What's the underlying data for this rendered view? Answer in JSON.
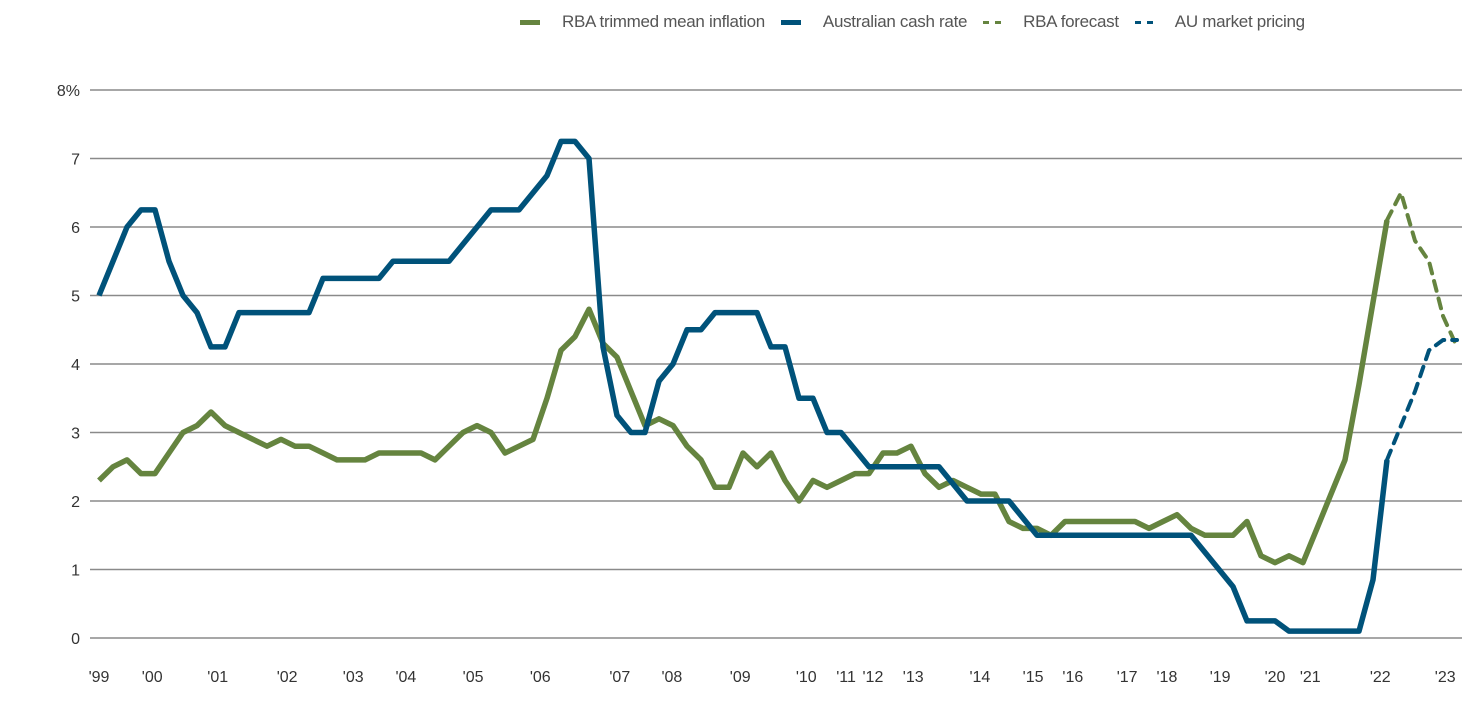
{
  "chart_data": {
    "type": "line",
    "title": "",
    "xlabel": "",
    "ylabel": "",
    "ylim": [
      0,
      8
    ],
    "y_ticks": [
      {
        "value": 0,
        "label": "0"
      },
      {
        "value": 1,
        "label": "1"
      },
      {
        "value": 2,
        "label": "2"
      },
      {
        "value": 3,
        "label": "3"
      },
      {
        "value": 4,
        "label": "4"
      },
      {
        "value": 5,
        "label": "5"
      },
      {
        "value": 6,
        "label": "6"
      },
      {
        "value": 7,
        "label": "7"
      },
      {
        "value": 8,
        "label": "8%"
      }
    ],
    "x_ticks": [
      {
        "value": 1999.0,
        "label": "'99"
      },
      {
        "value": 1999.95,
        "label": "'00"
      },
      {
        "value": 2001.12,
        "label": "'01"
      },
      {
        "value": 2002.36,
        "label": "'02"
      },
      {
        "value": 2003.54,
        "label": "'03"
      },
      {
        "value": 2004.48,
        "label": "'04"
      },
      {
        "value": 2005.68,
        "label": "'05"
      },
      {
        "value": 2006.88,
        "label": "'06"
      },
      {
        "value": 2008.3,
        "label": "'07"
      },
      {
        "value": 2009.23,
        "label": "'08"
      },
      {
        "value": 2010.45,
        "label": "'09"
      },
      {
        "value": 2011.63,
        "label": "'10"
      },
      {
        "value": 2012.34,
        "label": "'11"
      },
      {
        "value": 2012.82,
        "label": "'12"
      },
      {
        "value": 2013.54,
        "label": "'13"
      },
      {
        "value": 2014.73,
        "label": "'14"
      },
      {
        "value": 2015.68,
        "label": "'15"
      },
      {
        "value": 2016.39,
        "label": "'16"
      },
      {
        "value": 2017.36,
        "label": "'17"
      },
      {
        "value": 2018.07,
        "label": "'18"
      },
      {
        "value": 2019.02,
        "label": "'19"
      },
      {
        "value": 2020.0,
        "label": "'20"
      },
      {
        "value": 2020.63,
        "label": "'21"
      },
      {
        "value": 2021.88,
        "label": "'22"
      },
      {
        "value": 2023.04,
        "label": "'23"
      }
    ],
    "grid": true,
    "legend_position": "top-right",
    "series": [
      {
        "name": "RBA trimmed mean inflation",
        "color": "#65843f",
        "style": "solid",
        "x": [
          1999,
          1999.25,
          1999.5,
          1999.75,
          2000,
          2000.25,
          2000.5,
          2000.75,
          2001,
          2001.25,
          2001.5,
          2001.75,
          2002,
          2002.25,
          2002.5,
          2002.75,
          2003,
          2003.25,
          2003.5,
          2003.75,
          2004,
          2004.25,
          2004.5,
          2004.75,
          2005,
          2005.25,
          2005.5,
          2005.75,
          2006,
          2006.25,
          2006.5,
          2006.75,
          2007,
          2007.25,
          2007.5,
          2007.75,
          2008,
          2008.25,
          2008.5,
          2008.75,
          2009,
          2009.25,
          2009.5,
          2009.75,
          2010,
          2010.25,
          2010.5,
          2010.75,
          2011,
          2011.25,
          2011.5,
          2011.75,
          2012,
          2012.25,
          2012.5,
          2012.75,
          2013,
          2013.25,
          2013.5,
          2013.75,
          2014,
          2014.25,
          2014.5,
          2014.75,
          2015,
          2015.25,
          2015.5,
          2015.75,
          2016,
          2016.25,
          2016.5,
          2016.75,
          2017,
          2017.25,
          2017.5,
          2017.75,
          2018,
          2018.25,
          2018.5,
          2018.75,
          2019,
          2019.25,
          2019.5,
          2019.75,
          2020,
          2020.25,
          2020.5,
          2020.75,
          2021,
          2021.25,
          2021.5,
          2021.75,
          2022
        ],
        "values": [
          2.3,
          2.5,
          2.6,
          2.4,
          2.4,
          2.7,
          3.0,
          3.1,
          3.3,
          3.1,
          3.0,
          2.9,
          2.8,
          2.9,
          2.8,
          2.8,
          2.7,
          2.6,
          2.6,
          2.6,
          2.7,
          2.7,
          2.7,
          2.7,
          2.6,
          2.8,
          3.0,
          3.1,
          3.0,
          2.7,
          2.8,
          2.9,
          3.5,
          4.2,
          4.4,
          4.8,
          4.3,
          4.1,
          3.6,
          3.1,
          3.2,
          3.1,
          2.8,
          2.6,
          2.2,
          2.2,
          2.7,
          2.5,
          2.7,
          2.3,
          2.0,
          2.3,
          2.2,
          2.3,
          2.4,
          2.4,
          2.7,
          2.7,
          2.8,
          2.4,
          2.2,
          2.3,
          2.2,
          2.1,
          2.1,
          1.7,
          1.6,
          1.6,
          1.5,
          1.7,
          1.7,
          1.7,
          1.7,
          1.7,
          1.7,
          1.6,
          1.7,
          1.8,
          1.6,
          1.5,
          1.5,
          1.5,
          1.7,
          1.2,
          1.1,
          1.2,
          1.1,
          1.6,
          2.1,
          2.6,
          3.7,
          4.9,
          6.1
        ]
      },
      {
        "name": "Australian cash rate",
        "color": "#00527a",
        "style": "solid",
        "x": [
          1999,
          1999.25,
          1999.5,
          1999.75,
          2000,
          2000.25,
          2000.5,
          2000.75,
          2001,
          2001.25,
          2001.5,
          2001.75,
          2002,
          2002.25,
          2002.5,
          2002.75,
          2003,
          2003.25,
          2003.5,
          2003.75,
          2004,
          2004.25,
          2004.5,
          2004.75,
          2005,
          2005.25,
          2005.5,
          2005.75,
          2006,
          2006.25,
          2006.5,
          2006.75,
          2007,
          2007.25,
          2007.5,
          2007.75,
          2008,
          2008.25,
          2008.5,
          2008.75,
          2009,
          2009.25,
          2009.5,
          2009.75,
          2010,
          2010.25,
          2010.5,
          2010.75,
          2011,
          2011.25,
          2011.5,
          2011.75,
          2012,
          2012.25,
          2012.5,
          2012.75,
          2013,
          2013.25,
          2013.5,
          2013.75,
          2014,
          2014.25,
          2014.5,
          2014.75,
          2015,
          2015.25,
          2015.5,
          2015.75,
          2016,
          2016.25,
          2016.5,
          2016.75,
          2017,
          2017.25,
          2017.5,
          2017.75,
          2018,
          2018.25,
          2018.5,
          2018.75,
          2019,
          2019.25,
          2019.5,
          2019.75,
          2020,
          2020.25,
          2020.5,
          2020.75,
          2021,
          2021.25,
          2021.5,
          2021.75,
          2022
        ],
        "values": [
          5.0,
          5.5,
          6.0,
          6.25,
          6.25,
          5.5,
          5.0,
          4.75,
          4.25,
          4.25,
          4.75,
          4.75,
          4.75,
          4.75,
          4.75,
          4.75,
          5.25,
          5.25,
          5.25,
          5.25,
          5.25,
          5.5,
          5.5,
          5.5,
          5.5,
          5.5,
          5.75,
          6.0,
          6.25,
          6.25,
          6.25,
          6.5,
          6.75,
          7.25,
          7.25,
          7.0,
          4.25,
          3.25,
          3.0,
          3.0,
          3.75,
          4.0,
          4.5,
          4.5,
          4.75,
          4.75,
          4.75,
          4.75,
          4.25,
          4.25,
          3.5,
          3.5,
          3.0,
          3.0,
          2.75,
          2.5,
          2.5,
          2.5,
          2.5,
          2.5,
          2.5,
          2.25,
          2.0,
          2.0,
          2.0,
          2.0,
          1.75,
          1.5,
          1.5,
          1.5,
          1.5,
          1.5,
          1.5,
          1.5,
          1.5,
          1.5,
          1.5,
          1.5,
          1.5,
          1.25,
          1.0,
          0.75,
          0.25,
          0.25,
          0.25,
          0.1,
          0.1,
          0.1,
          0.1,
          0.1,
          0.1,
          0.85,
          2.6
        ]
      },
      {
        "name": "RBA forecast",
        "color": "#65843f",
        "style": "dashed",
        "x": [
          2022,
          2022.25,
          2022.5,
          2022.75,
          2023,
          2023.25
        ],
        "values": [
          6.1,
          6.5,
          5.8,
          5.5,
          4.7,
          4.25
        ]
      },
      {
        "name": "AU market pricing",
        "color": "#00527a",
        "style": "dashed",
        "x": [
          2022,
          2022.25,
          2022.5,
          2022.75,
          2023,
          2023.25
        ],
        "values": [
          2.6,
          3.1,
          3.6,
          4.2,
          4.35,
          4.35
        ]
      }
    ]
  }
}
